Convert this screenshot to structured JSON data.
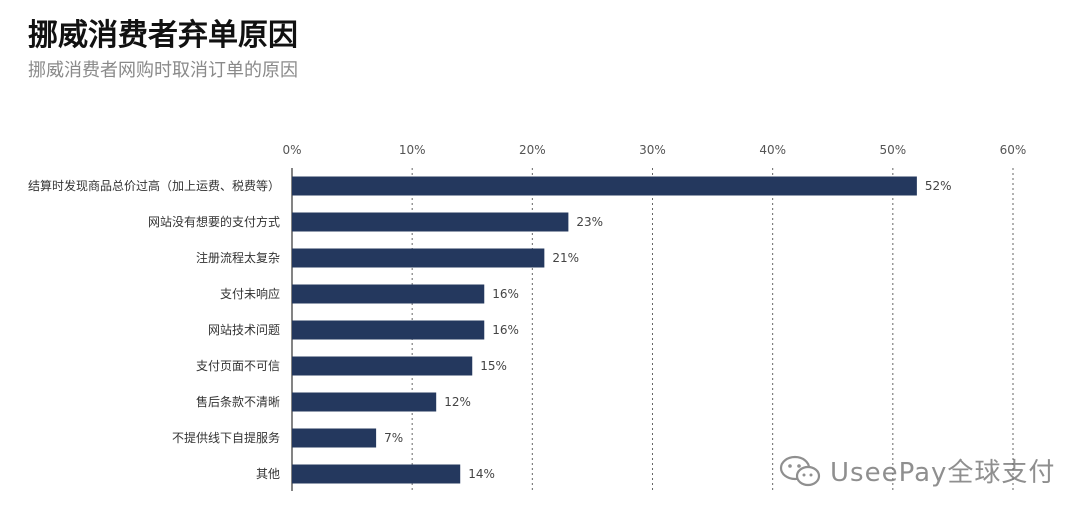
{
  "title": "挪威消费者弃单原因",
  "subtitle": "挪威消费者网购时取消订单的原因",
  "watermark": "UseePay全球支付",
  "colors": {
    "bar": "#24385e",
    "grid": "#666666",
    "axis": "#333333"
  },
  "chart_data": {
    "type": "bar",
    "orientation": "horizontal",
    "categories": [
      "结算时发现商品总价过高（加上运费、税费等）",
      "网站没有想要的支付方式",
      "注册流程太复杂",
      "支付未响应",
      "网站技术问题",
      "支付页面不可信",
      "售后条款不清晰",
      "不提供线下自提服务",
      "其他"
    ],
    "values": [
      52,
      23,
      21,
      16,
      16,
      15,
      12,
      7,
      14
    ],
    "value_labels": [
      "52%",
      "23%",
      "21%",
      "16%",
      "16%",
      "15%",
      "12%",
      "7%",
      "14%"
    ],
    "xlim": [
      0,
      60
    ],
    "xticks": [
      0,
      10,
      20,
      30,
      40,
      50,
      60
    ],
    "xtick_labels": [
      "0%",
      "10%",
      "20%",
      "30%",
      "40%",
      "50%",
      "60%"
    ],
    "grid": "vertical-dotted",
    "legend": "none"
  }
}
